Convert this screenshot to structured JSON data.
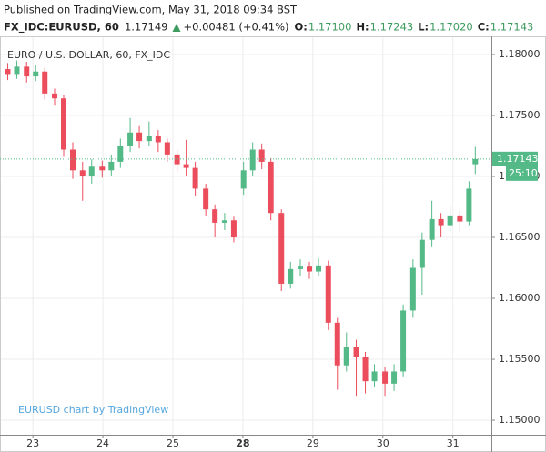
{
  "header": {
    "published": "Published on TradingView.com, May 31, 2018 09:34 BST",
    "symbol": "FX_IDC:EURUSD, 60",
    "last": "1.17149",
    "change": "+0.00481 (+0.41%)",
    "ohlc": [
      {
        "label": "O:",
        "value": "1.17100"
      },
      {
        "label": "H:",
        "value": "1.17243"
      },
      {
        "label": "L:",
        "value": "1.17020"
      },
      {
        "label": "C:",
        "value": "1.17143"
      }
    ]
  },
  "chart_data": {
    "type": "candlestick",
    "title": "EURO / U.S. DOLLAR, 60, FX_IDC",
    "watermark": "EURUSD chart by TradingView",
    "x": [
      -0.36,
      -0.23,
      -0.09,
      0.04,
      0.17,
      0.31,
      0.44,
      0.57,
      0.71,
      0.84,
      0.99,
      1.12,
      1.25,
      1.39,
      1.52,
      1.66,
      1.79,
      1.92,
      2.06,
      2.19,
      2.32,
      2.47,
      2.6,
      2.74,
      2.87,
      3.01,
      3.14,
      3.27,
      3.4,
      3.55,
      3.68,
      3.82,
      3.95,
      4.08,
      4.22,
      4.35,
      4.48,
      4.62,
      4.75,
      4.88,
      5.03,
      5.16,
      5.29,
      5.43,
      5.56,
      5.7,
      5.83,
      5.96,
      6.1,
      6.23,
      6.32
    ],
    "open": [
      1.1788,
      1.1784,
      1.179,
      1.1782,
      1.1786,
      1.1768,
      1.1764,
      1.1722,
      1.1705,
      1.17,
      1.1708,
      1.1705,
      1.1712,
      1.1725,
      1.1736,
      1.1729,
      1.1733,
      1.1728,
      1.1718,
      1.171,
      1.1707,
      1.169,
      1.1673,
      1.1662,
      1.1664,
      1.169,
      1.1705,
      1.1722,
      1.1712,
      1.167,
      1.1612,
      1.1624,
      1.1626,
      1.1622,
      1.1627,
      1.158,
      1.1545,
      1.156,
      1.1552,
      1.1532,
      1.154,
      1.153,
      1.154,
      1.159,
      1.1625,
      1.1648,
      1.1665,
      1.166,
      1.1668,
      1.1663,
      1.171
    ],
    "high": [
      1.1793,
      1.1795,
      1.1794,
      1.1791,
      1.1789,
      1.1772,
      1.1767,
      1.1728,
      1.1712,
      1.1714,
      1.1713,
      1.1718,
      1.1731,
      1.1748,
      1.1742,
      1.1745,
      1.1738,
      1.1731,
      1.1722,
      1.173,
      1.1712,
      1.1694,
      1.1677,
      1.167,
      1.1667,
      1.1712,
      1.1728,
      1.1727,
      1.1715,
      1.1673,
      1.163,
      1.1632,
      1.163,
      1.1633,
      1.1631,
      1.1584,
      1.1572,
      1.1566,
      1.1556,
      1.1546,
      1.1544,
      1.1546,
      1.1595,
      1.1632,
      1.1654,
      1.168,
      1.167,
      1.1676,
      1.1672,
      1.1696,
      1.17243
    ],
    "low": [
      1.1779,
      1.178,
      1.1777,
      1.1778,
      1.1763,
      1.1758,
      1.1716,
      1.1698,
      1.168,
      1.1694,
      1.1699,
      1.17,
      1.1707,
      1.172,
      1.1723,
      1.1725,
      1.172,
      1.1712,
      1.1704,
      1.17,
      1.1684,
      1.1668,
      1.165,
      1.1656,
      1.1646,
      1.1685,
      1.17,
      1.1706,
      1.1664,
      1.1606,
      1.1608,
      1.1618,
      1.1616,
      1.1618,
      1.1574,
      1.1525,
      1.154,
      1.152,
      1.1522,
      1.1527,
      1.152,
      1.1524,
      1.1536,
      1.1584,
      1.1603,
      1.1642,
      1.165,
      1.1654,
      1.1655,
      1.166,
      1.1702
    ],
    "close": [
      1.1784,
      1.179,
      1.1782,
      1.1786,
      1.1768,
      1.1764,
      1.1722,
      1.1705,
      1.17,
      1.1708,
      1.1705,
      1.1712,
      1.1725,
      1.1736,
      1.1729,
      1.1733,
      1.1728,
      1.1718,
      1.171,
      1.1707,
      1.169,
      1.1673,
      1.1662,
      1.1664,
      1.165,
      1.1705,
      1.1722,
      1.1712,
      1.167,
      1.1612,
      1.1624,
      1.1626,
      1.1622,
      1.1627,
      1.158,
      1.1545,
      1.156,
      1.1552,
      1.1532,
      1.154,
      1.153,
      1.154,
      1.159,
      1.1625,
      1.1648,
      1.1665,
      1.166,
      1.1668,
      1.1663,
      1.169,
      1.17143
    ],
    "up_color": "#53b987",
    "down_color": "#eb4d5c",
    "xlim": [
      -0.47,
      6.55
    ],
    "ylim": [
      1.14881,
      1.18149
    ],
    "xticks": [
      {
        "value": 0,
        "label": "23"
      },
      {
        "value": 1,
        "label": "24"
      },
      {
        "value": 2,
        "label": "25"
      },
      {
        "value": 3,
        "label": "28",
        "bold": true
      },
      {
        "value": 4,
        "label": "29"
      },
      {
        "value": 5,
        "label": "30"
      },
      {
        "value": 6,
        "label": "31"
      }
    ],
    "yticks": [
      {
        "value": 1.15,
        "label": "1.15000"
      },
      {
        "value": 1.155,
        "label": "1.15500"
      },
      {
        "value": 1.16,
        "label": "1.16000"
      },
      {
        "value": 1.165,
        "label": "1.16500"
      },
      {
        "value": 1.17,
        "label": "1.17000"
      },
      {
        "value": 1.175,
        "label": "1.17500"
      },
      {
        "value": 1.18,
        "label": "1.18000"
      }
    ],
    "last_price": {
      "value": 1.17143,
      "label": "1.17143"
    },
    "countdown": "25:10",
    "grid": true
  }
}
